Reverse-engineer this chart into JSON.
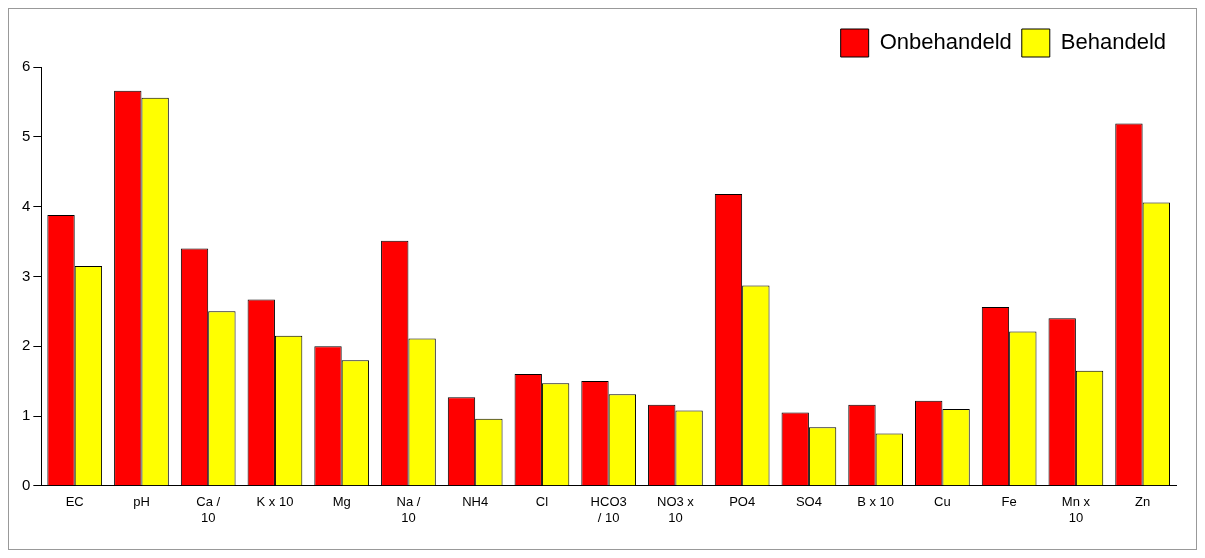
{
  "chart_data": {
    "type": "bar",
    "categories": [
      "EC",
      "pH",
      "Ca /\n10",
      "K x 10",
      "Mg",
      "Na /\n10",
      "NH4",
      "Cl",
      "HCO3\n/ 10",
      "NO3 x\n10",
      "PO4",
      "SO4",
      "B x 10",
      "Cu",
      "Fe",
      "Mn x\n10",
      "Zn"
    ],
    "series": [
      {
        "name": "Onbehandeld",
        "color": "#ff0000",
        "values": [
          3.88,
          5.66,
          3.4,
          2.67,
          2.0,
          3.51,
          1.27,
          1.6,
          1.5,
          1.16,
          4.18,
          1.05,
          1.16,
          1.22,
          2.56,
          2.4,
          5.19
        ]
      },
      {
        "name": "Behandeld",
        "color": "#ffff00",
        "values": [
          3.15,
          5.56,
          2.5,
          2.15,
          1.8,
          2.11,
          0.96,
          1.47,
          1.31,
          1.08,
          2.87,
          0.84,
          0.75,
          1.1,
          2.21,
          1.65,
          4.06
        ]
      }
    ],
    "ylim": [
      0,
      6
    ],
    "yticks": [
      0,
      1,
      2,
      3,
      4,
      5,
      6
    ],
    "grid": false,
    "legend": "top right"
  }
}
